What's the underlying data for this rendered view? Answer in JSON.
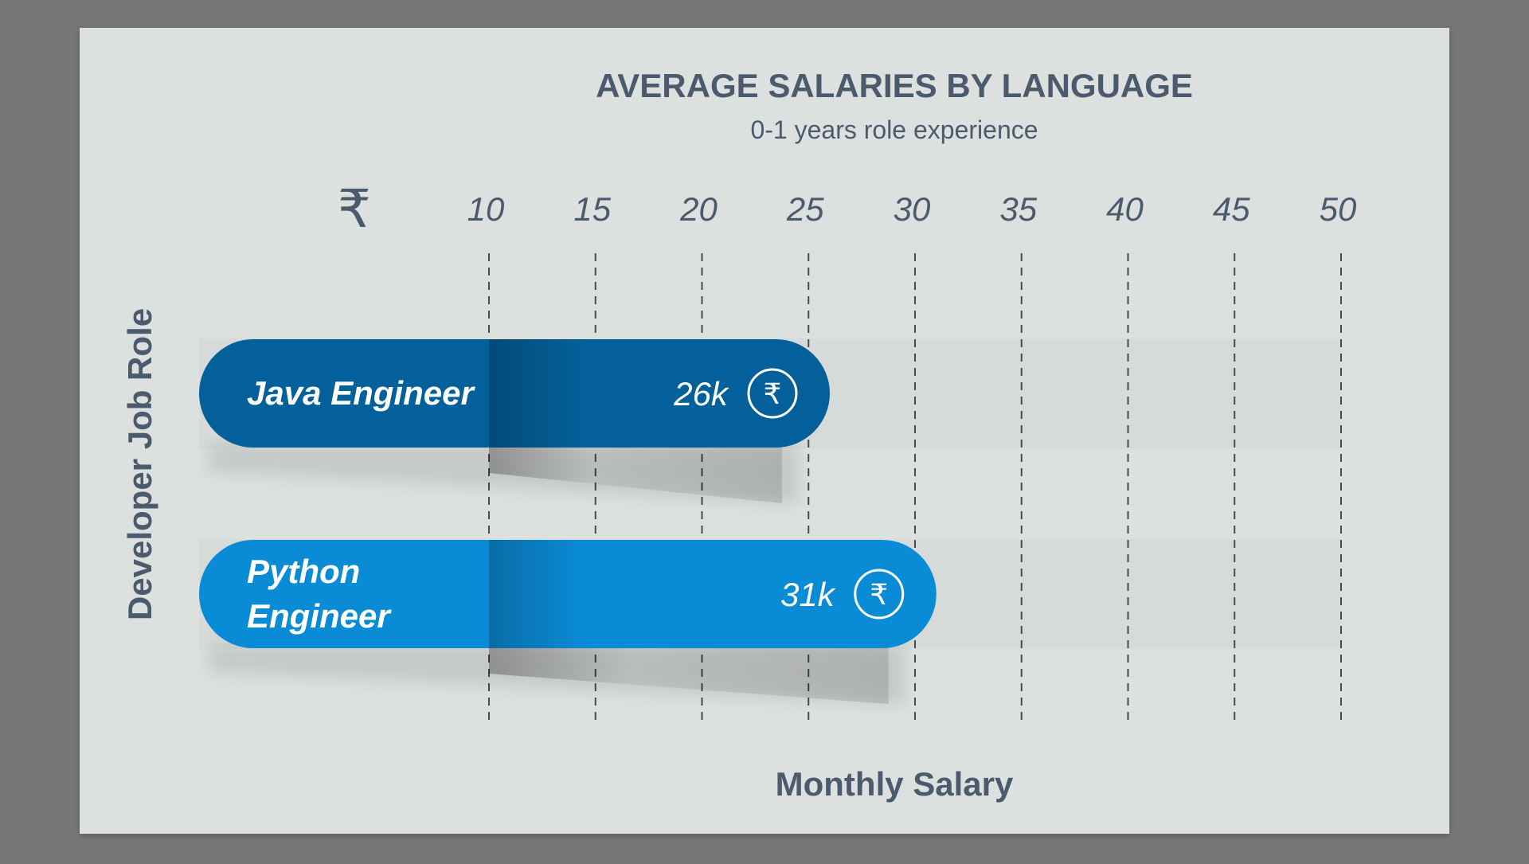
{
  "chart_data": {
    "type": "bar",
    "orientation": "horizontal",
    "title": "AVERAGE SALARIES BY LANGUAGE",
    "subtitle": "0-1 years role experience",
    "xlabel": "Monthly Salary",
    "ylabel": "Developer Job Role",
    "currency_symbol": "₹",
    "ticks": [
      "10",
      "15",
      "20",
      "25",
      "30",
      "35",
      "40",
      "45",
      "50"
    ],
    "xlim": [
      5,
      50
    ],
    "grid": "vertical-dashed",
    "categories": [
      {
        "name_lines": [
          "Java Engineer"
        ],
        "value": 26,
        "value_label": "26k",
        "color": "#04609A"
      },
      {
        "name_lines": [
          "Python",
          "Engineer"
        ],
        "value": 31,
        "value_label": "31k",
        "color": "#0A8BD6"
      }
    ]
  },
  "colors": {
    "background": "#777777",
    "panel": "#DCE0DE",
    "text": "#4C5A6E",
    "grid": "#4A4A4A"
  },
  "icons": {
    "currency_header": "rupee-icon",
    "bar_badge": "rupee-circle-icon"
  }
}
